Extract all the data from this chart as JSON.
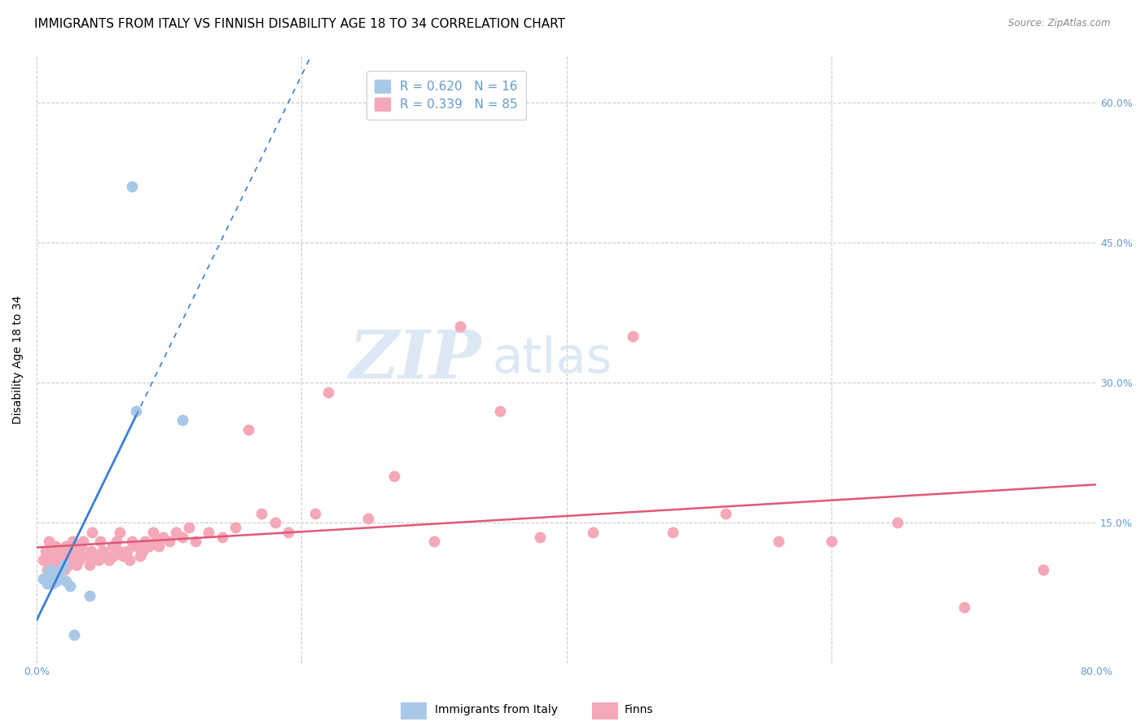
{
  "title": "IMMIGRANTS FROM ITALY VS FINNISH DISABILITY AGE 18 TO 34 CORRELATION CHART",
  "source": "Source: ZipAtlas.com",
  "ylabel": "Disability Age 18 to 34",
  "xlim": [
    0.0,
    0.8
  ],
  "ylim": [
    0.0,
    0.65
  ],
  "x_tick_positions": [
    0.0,
    0.2,
    0.4,
    0.6,
    0.8
  ],
  "x_tick_labels": [
    "0.0%",
    "",
    "",
    "",
    "80.0%"
  ],
  "y_tick_positions": [
    0.0,
    0.15,
    0.3,
    0.45,
    0.6
  ],
  "y_tick_labels_right": [
    "",
    "15.0%",
    "30.0%",
    "45.0%",
    "60.0%"
  ],
  "italy_color": "#a8c8e8",
  "finns_color": "#f4a8b8",
  "italy_line_color": "#3a7fd5",
  "finns_line_color": "#e05878",
  "legend_italy_r": "0.620",
  "legend_italy_n": "16",
  "legend_finns_r": "0.339",
  "legend_finns_n": "85",
  "italy_x": [
    0.005,
    0.008,
    0.01,
    0.01,
    0.012,
    0.015,
    0.016,
    0.018,
    0.02,
    0.022,
    0.025,
    0.028,
    0.04,
    0.072,
    0.075,
    0.11
  ],
  "italy_y": [
    0.09,
    0.085,
    0.095,
    0.1,
    0.085,
    0.088,
    0.092,
    0.098,
    0.105,
    0.088,
    0.082,
    0.03,
    0.072,
    0.51,
    0.27,
    0.26
  ],
  "finns_x": [
    0.005,
    0.007,
    0.008,
    0.009,
    0.01,
    0.011,
    0.013,
    0.014,
    0.015,
    0.016,
    0.017,
    0.018,
    0.019,
    0.02,
    0.021,
    0.022,
    0.023,
    0.024,
    0.025,
    0.026,
    0.027,
    0.028,
    0.03,
    0.031,
    0.032,
    0.033,
    0.034,
    0.035,
    0.038,
    0.04,
    0.041,
    0.042,
    0.045,
    0.047,
    0.048,
    0.05,
    0.052,
    0.055,
    0.057,
    0.058,
    0.06,
    0.062,
    0.063,
    0.065,
    0.068,
    0.07,
    0.072,
    0.075,
    0.078,
    0.08,
    0.082,
    0.085,
    0.088,
    0.09,
    0.092,
    0.095,
    0.1,
    0.105,
    0.11,
    0.115,
    0.12,
    0.13,
    0.14,
    0.15,
    0.16,
    0.17,
    0.18,
    0.19,
    0.21,
    0.22,
    0.25,
    0.27,
    0.3,
    0.32,
    0.35,
    0.38,
    0.42,
    0.45,
    0.48,
    0.52,
    0.56,
    0.6,
    0.65,
    0.7,
    0.76
  ],
  "finns_y": [
    0.11,
    0.12,
    0.1,
    0.13,
    0.115,
    0.105,
    0.095,
    0.125,
    0.11,
    0.1,
    0.12,
    0.105,
    0.115,
    0.11,
    0.1,
    0.125,
    0.115,
    0.105,
    0.12,
    0.11,
    0.13,
    0.115,
    0.105,
    0.12,
    0.11,
    0.115,
    0.125,
    0.13,
    0.115,
    0.105,
    0.12,
    0.14,
    0.115,
    0.11,
    0.13,
    0.12,
    0.115,
    0.11,
    0.125,
    0.115,
    0.13,
    0.12,
    0.14,
    0.115,
    0.12,
    0.11,
    0.13,
    0.125,
    0.115,
    0.12,
    0.13,
    0.125,
    0.14,
    0.13,
    0.125,
    0.135,
    0.13,
    0.14,
    0.135,
    0.145,
    0.13,
    0.14,
    0.135,
    0.145,
    0.25,
    0.16,
    0.15,
    0.14,
    0.16,
    0.29,
    0.155,
    0.2,
    0.13,
    0.36,
    0.27,
    0.135,
    0.14,
    0.35,
    0.14,
    0.16,
    0.13,
    0.13,
    0.15,
    0.06,
    0.1
  ],
  "background_color": "#ffffff",
  "grid_color": "#cccccc",
  "title_fontsize": 11,
  "axis_label_fontsize": 10,
  "tick_fontsize": 9,
  "tick_color": "#6699cc",
  "watermark_zip": "ZIP",
  "watermark_atlas": "atlas",
  "watermark_color": "#dde8f5"
}
